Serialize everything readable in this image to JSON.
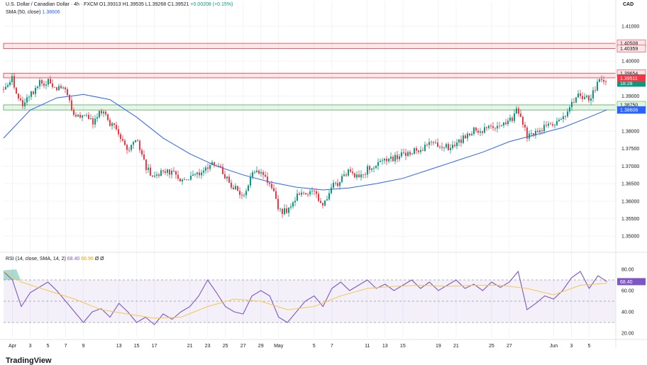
{
  "header": {
    "symbol": "U.S. Dollar / Canadian Dollar · 4h · FXCM",
    "open": "O1.39313",
    "high": "H1.39535",
    "low": "L1.39268",
    "close": "C1.39521",
    "change": "+0.00208 (+0.15%)",
    "sma_label": "SMA (50, close)",
    "sma_value": "1.38606",
    "rsi_label": "RSI (14, close, SMA, 14, 2)",
    "rsi_value": "68.40",
    "rsi_sma_value": "66.96",
    "rsi_extra1": "Ø",
    "rsi_extra2": "Ø"
  },
  "currency": "CAD",
  "brand": "TradingView",
  "colors": {
    "up": "#089981",
    "down": "#f23645",
    "sma": "#2962ff",
    "rsi": "#7e57c2",
    "rsi_sma": "#f5c84c",
    "resistance": "#f23645",
    "support": "#4caf50"
  },
  "chart_data": [
    {
      "type": "candlestick",
      "title": "U.S. Dollar / Canadian Dollar · 4h · FXCM",
      "y_ticks": [
        "1.41000",
        "1.40000",
        "1.39000",
        "1.38000",
        "1.37500",
        "1.37000",
        "1.36500",
        "1.36000",
        "1.35500",
        "1.35000"
      ],
      "y_tick_values": [
        1.41,
        1.4,
        1.39,
        1.38,
        1.375,
        1.37,
        1.365,
        1.36,
        1.355,
        1.35
      ],
      "ylim": [
        1.346,
        1.413
      ],
      "x_ticks": [
        "Apr",
        "3",
        "5",
        "7",
        "9",
        "13",
        "15",
        "17",
        "21",
        "23",
        "25",
        "27",
        "29",
        "May",
        "5",
        "7",
        "11",
        "13",
        "15",
        "19",
        "21",
        "25",
        "27",
        "Jun",
        "3",
        "5"
      ],
      "x_tick_dates": [
        "2025-04-01",
        "2025-04-03",
        "2025-04-05",
        "2025-04-07",
        "2025-04-09",
        "2025-04-13",
        "2025-04-15",
        "2025-04-17",
        "2025-04-21",
        "2025-04-23",
        "2025-04-25",
        "2025-04-27",
        "2025-04-29",
        "2025-05-01",
        "2025-05-05",
        "2025-05-07",
        "2025-05-11",
        "2025-05-13",
        "2025-05-15",
        "2025-05-19",
        "2025-05-21",
        "2025-05-25",
        "2025-05-27",
        "2025-06-01",
        "2025-06-03",
        "2025-06-05"
      ],
      "price_path": [
        {
          "date": "2025-03-31",
          "price": 1.392
        },
        {
          "date": "2025-04-01",
          "price": 1.395
        },
        {
          "date": "2025-04-02",
          "price": 1.3875
        },
        {
          "date": "2025-04-04",
          "price": 1.3935
        },
        {
          "date": "2025-04-05",
          "price": 1.3945
        },
        {
          "date": "2025-04-07",
          "price": 1.391
        },
        {
          "date": "2025-04-08",
          "price": 1.3845
        },
        {
          "date": "2025-04-09",
          "price": 1.385
        },
        {
          "date": "2025-04-10",
          "price": 1.3825
        },
        {
          "date": "2025-04-11",
          "price": 1.3855
        },
        {
          "date": "2025-04-13",
          "price": 1.379
        },
        {
          "date": "2025-04-14",
          "price": 1.3745
        },
        {
          "date": "2025-04-15",
          "price": 1.377
        },
        {
          "date": "2025-04-16",
          "price": 1.37
        },
        {
          "date": "2025-04-17",
          "price": 1.3665
        },
        {
          "date": "2025-04-18",
          "price": 1.3695
        },
        {
          "date": "2025-04-20",
          "price": 1.366
        },
        {
          "date": "2025-04-22",
          "price": 1.368
        },
        {
          "date": "2025-04-24",
          "price": 1.371
        },
        {
          "date": "2025-04-25",
          "price": 1.3665
        },
        {
          "date": "2025-04-27",
          "price": 1.361
        },
        {
          "date": "2025-04-28",
          "price": 1.368
        },
        {
          "date": "2025-04-29",
          "price": 1.369
        },
        {
          "date": "2025-04-30",
          "price": 1.365
        },
        {
          "date": "2025-05-01",
          "price": 1.358
        },
        {
          "date": "2025-05-02",
          "price": 1.3565
        },
        {
          "date": "2025-05-03",
          "price": 1.361
        },
        {
          "date": "2025-05-05",
          "price": 1.3625
        },
        {
          "date": "2025-05-06",
          "price": 1.359
        },
        {
          "date": "2025-05-07",
          "price": 1.364
        },
        {
          "date": "2025-05-08",
          "price": 1.366
        },
        {
          "date": "2025-05-09",
          "price": 1.369
        },
        {
          "date": "2025-05-10",
          "price": 1.367
        },
        {
          "date": "2025-05-12",
          "price": 1.371
        },
        {
          "date": "2025-05-13",
          "price": 1.3715
        },
        {
          "date": "2025-05-14",
          "price": 1.3725
        },
        {
          "date": "2025-05-16",
          "price": 1.374
        },
        {
          "date": "2025-05-18",
          "price": 1.376
        },
        {
          "date": "2025-05-19",
          "price": 1.3765
        },
        {
          "date": "2025-05-20",
          "price": 1.3755
        },
        {
          "date": "2025-05-22",
          "price": 1.378
        },
        {
          "date": "2025-05-23",
          "price": 1.38
        },
        {
          "date": "2025-05-25",
          "price": 1.381
        },
        {
          "date": "2025-05-26",
          "price": 1.3805
        },
        {
          "date": "2025-05-27",
          "price": 1.383
        },
        {
          "date": "2025-05-28",
          "price": 1.386
        },
        {
          "date": "2025-05-29",
          "price": 1.3785
        },
        {
          "date": "2025-05-30",
          "price": 1.3795
        },
        {
          "date": "2025-05-31",
          "price": 1.381
        },
        {
          "date": "2025-06-01",
          "price": 1.3815
        },
        {
          "date": "2025-06-02",
          "price": 1.383
        },
        {
          "date": "2025-06-03",
          "price": 1.3875
        },
        {
          "date": "2025-06-04",
          "price": 1.3905
        },
        {
          "date": "2025-06-05",
          "price": 1.389
        },
        {
          "date": "2025-06-06",
          "price": 1.3935
        },
        {
          "date": "2025-06-07",
          "price": 1.3952
        }
      ],
      "sma_path": [
        {
          "date": "2025-03-31",
          "price": 1.378
        },
        {
          "date": "2025-04-03",
          "price": 1.386
        },
        {
          "date": "2025-04-06",
          "price": 1.3895
        },
        {
          "date": "2025-04-09",
          "price": 1.3905
        },
        {
          "date": "2025-04-12",
          "price": 1.389
        },
        {
          "date": "2025-04-15",
          "price": 1.384
        },
        {
          "date": "2025-04-18",
          "price": 1.378
        },
        {
          "date": "2025-04-21",
          "price": 1.3735
        },
        {
          "date": "2025-04-24",
          "price": 1.37
        },
        {
          "date": "2025-04-27",
          "price": 1.3675
        },
        {
          "date": "2025-04-30",
          "price": 1.3655
        },
        {
          "date": "2025-05-03",
          "price": 1.364
        },
        {
          "date": "2025-05-06",
          "price": 1.3632
        },
        {
          "date": "2025-05-09",
          "price": 1.3638
        },
        {
          "date": "2025-05-12",
          "price": 1.365
        },
        {
          "date": "2025-05-15",
          "price": 1.3665
        },
        {
          "date": "2025-05-18",
          "price": 1.369
        },
        {
          "date": "2025-05-21",
          "price": 1.3715
        },
        {
          "date": "2025-05-24",
          "price": 1.374
        },
        {
          "date": "2025-05-27",
          "price": 1.377
        },
        {
          "date": "2025-05-30",
          "price": 1.379
        },
        {
          "date": "2025-06-02",
          "price": 1.381
        },
        {
          "date": "2025-06-05",
          "price": 1.384
        },
        {
          "date": "2025-06-07",
          "price": 1.3861
        }
      ],
      "zones": [
        {
          "name": "resistance",
          "from": 1.40359,
          "to": 1.40508,
          "labels": [
            "1.40508",
            "1.40359"
          ],
          "color": "#f23645"
        },
        {
          "name": "resistance",
          "from": 1.39521,
          "to": 1.39654,
          "labels": [
            "1.39654"
          ],
          "color": "#f23645"
        },
        {
          "name": "support",
          "from": 1.38604,
          "to": 1.3875,
          "labels": [
            "1.38750",
            "1.38604"
          ],
          "color": "#4caf50"
        }
      ],
      "price_tags": [
        {
          "text": "1.39521",
          "value": 1.39521,
          "color": "#089981"
        },
        {
          "text": "18:28",
          "value": 1.3937,
          "color": "#089981"
        },
        {
          "text": "1.39511",
          "value": 1.39511,
          "color": "#f23645"
        },
        {
          "text": "1.38606",
          "value": 1.38606,
          "color": "#2962ff"
        }
      ],
      "grid": true
    },
    {
      "type": "line",
      "title": "RSI (14, close, SMA, 14, 2)",
      "y_ticks": [
        "80.00",
        "60.00",
        "40.00",
        "20.00"
      ],
      "y_tick_values": [
        80,
        60,
        40,
        20
      ],
      "ylim": [
        16,
        88
      ],
      "bands": [
        70,
        50,
        30
      ],
      "series": [
        {
          "points": [
            {
              "date": "2025-03-31",
              "value": 78
            },
            {
              "date": "2025-04-01",
              "value": 70
            },
            {
              "date": "2025-04-02",
              "value": 45
            },
            {
              "date": "2025-04-03",
              "value": 58
            },
            {
              "date": "2025-04-04",
              "value": 63
            },
            {
              "date": "2025-04-05",
              "value": 68
            },
            {
              "date": "2025-04-06",
              "value": 60
            },
            {
              "date": "2025-04-07",
              "value": 50
            },
            {
              "date": "2025-04-08",
              "value": 40
            },
            {
              "date": "2025-04-09",
              "value": 30
            },
            {
              "date": "2025-04-10",
              "value": 40
            },
            {
              "date": "2025-04-11",
              "value": 43
            },
            {
              "date": "2025-04-12",
              "value": 35
            },
            {
              "date": "2025-04-13",
              "value": 48
            },
            {
              "date": "2025-04-14",
              "value": 40
            },
            {
              "date": "2025-04-15",
              "value": 30
            },
            {
              "date": "2025-04-16",
              "value": 35
            },
            {
              "date": "2025-04-17",
              "value": 28
            },
            {
              "date": "2025-04-18",
              "value": 38
            },
            {
              "date": "2025-04-19",
              "value": 33
            },
            {
              "date": "2025-04-20",
              "value": 40
            },
            {
              "date": "2025-04-21",
              "value": 45
            },
            {
              "date": "2025-04-22",
              "value": 55
            },
            {
              "date": "2025-04-23",
              "value": 70
            },
            {
              "date": "2025-04-24",
              "value": 58
            },
            {
              "date": "2025-04-25",
              "value": 45
            },
            {
              "date": "2025-04-26",
              "value": 40
            },
            {
              "date": "2025-04-27",
              "value": 38
            },
            {
              "date": "2025-04-28",
              "value": 55
            },
            {
              "date": "2025-04-29",
              "value": 60
            },
            {
              "date": "2025-04-30",
              "value": 55
            },
            {
              "date": "2025-05-01",
              "value": 35
            },
            {
              "date": "2025-05-02",
              "value": 30
            },
            {
              "date": "2025-05-03",
              "value": 40
            },
            {
              "date": "2025-05-04",
              "value": 50
            },
            {
              "date": "2025-05-05",
              "value": 55
            },
            {
              "date": "2025-05-06",
              "value": 45
            },
            {
              "date": "2025-05-07",
              "value": 62
            },
            {
              "date": "2025-05-08",
              "value": 68
            },
            {
              "date": "2025-05-09",
              "value": 60
            },
            {
              "date": "2025-05-10",
              "value": 65
            },
            {
              "date": "2025-05-11",
              "value": 70
            },
            {
              "date": "2025-05-12",
              "value": 62
            },
            {
              "date": "2025-05-13",
              "value": 66
            },
            {
              "date": "2025-05-14",
              "value": 60
            },
            {
              "date": "2025-05-15",
              "value": 65
            },
            {
              "date": "2025-05-16",
              "value": 70
            },
            {
              "date": "2025-05-17",
              "value": 62
            },
            {
              "date": "2025-05-18",
              "value": 68
            },
            {
              "date": "2025-05-19",
              "value": 60
            },
            {
              "date": "2025-05-20",
              "value": 65
            },
            {
              "date": "2025-05-21",
              "value": 70
            },
            {
              "date": "2025-05-22",
              "value": 62
            },
            {
              "date": "2025-05-23",
              "value": 66
            },
            {
              "date": "2025-05-24",
              "value": 60
            },
            {
              "date": "2025-05-25",
              "value": 68
            },
            {
              "date": "2025-05-26",
              "value": 63
            },
            {
              "date": "2025-05-27",
              "value": 68
            },
            {
              "date": "2025-05-28",
              "value": 78
            },
            {
              "date": "2025-05-29",
              "value": 42
            },
            {
              "date": "2025-05-30",
              "value": 48
            },
            {
              "date": "2025-05-31",
              "value": 55
            },
            {
              "date": "2025-06-01",
              "value": 52
            },
            {
              "date": "2025-06-02",
              "value": 60
            },
            {
              "date": "2025-06-03",
              "value": 72
            },
            {
              "date": "2025-06-04",
              "value": 78
            },
            {
              "date": "2025-06-05",
              "value": 62
            },
            {
              "date": "2025-06-06",
              "value": 74
            },
            {
              "date": "2025-06-07",
              "value": 68.4
            }
          ],
          "color": "#7e57c2"
        },
        {
          "points": [
            {
              "date": "2025-03-31",
              "value": 78
            },
            {
              "date": "2025-04-02",
              "value": 68
            },
            {
              "date": "2025-04-05",
              "value": 60
            },
            {
              "date": "2025-04-08",
              "value": 52
            },
            {
              "date": "2025-04-11",
              "value": 42
            },
            {
              "date": "2025-04-14",
              "value": 38
            },
            {
              "date": "2025-04-17",
              "value": 34
            },
            {
              "date": "2025-04-20",
              "value": 35
            },
            {
              "date": "2025-04-23",
              "value": 45
            },
            {
              "date": "2025-04-26",
              "value": 52
            },
            {
              "date": "2025-04-29",
              "value": 50
            },
            {
              "date": "2025-05-02",
              "value": 42
            },
            {
              "date": "2025-05-05",
              "value": 45
            },
            {
              "date": "2025-05-08",
              "value": 55
            },
            {
              "date": "2025-05-11",
              "value": 62
            },
            {
              "date": "2025-05-14",
              "value": 64
            },
            {
              "date": "2025-05-17",
              "value": 65
            },
            {
              "date": "2025-05-20",
              "value": 64
            },
            {
              "date": "2025-05-23",
              "value": 65
            },
            {
              "date": "2025-05-26",
              "value": 65
            },
            {
              "date": "2025-05-29",
              "value": 62
            },
            {
              "date": "2025-06-01",
              "value": 56
            },
            {
              "date": "2025-06-04",
              "value": 65
            },
            {
              "date": "2025-06-07",
              "value": 66.96
            }
          ],
          "color": "#f5c84c"
        }
      ],
      "grid": true
    }
  ]
}
